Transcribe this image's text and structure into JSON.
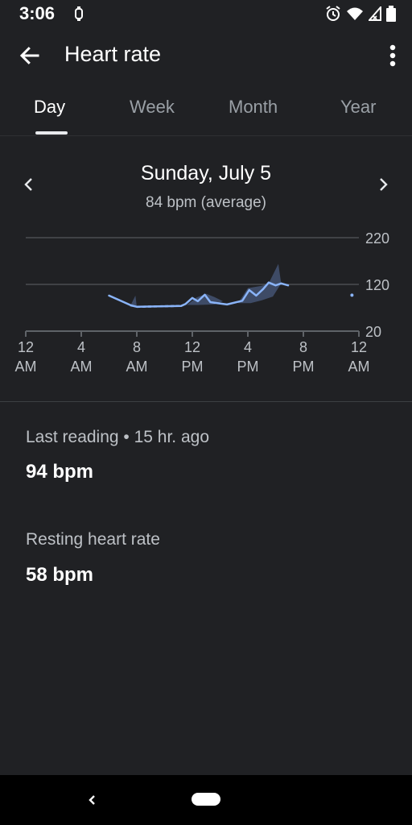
{
  "status": {
    "time": "3:06"
  },
  "header": {
    "title": "Heart rate"
  },
  "tabs": [
    {
      "label": "Day"
    },
    {
      "label": "Week"
    },
    {
      "label": "Month"
    },
    {
      "label": "Year"
    }
  ],
  "day": {
    "date": "Sunday, July 5",
    "average": "84 bpm (average)"
  },
  "chart_data": {
    "type": "line",
    "yticks": [
      "220",
      "120",
      "20"
    ],
    "ylim": [
      20,
      220
    ],
    "xticks": [
      {
        "top": "12",
        "bottom": "AM"
      },
      {
        "top": "4",
        "bottom": "AM"
      },
      {
        "top": "8",
        "bottom": "AM"
      },
      {
        "top": "12",
        "bottom": "PM"
      },
      {
        "top": "4",
        "bottom": "PM"
      },
      {
        "top": "8",
        "bottom": "PM"
      },
      {
        "top": "12",
        "bottom": "AM"
      }
    ],
    "x_hours": [
      0,
      24
    ],
    "series": [
      {
        "x": [
          6.0,
          7.6,
          8.0,
          11.2,
          11.5,
          12.0,
          12.4,
          12.9,
          13.3,
          13.8,
          14.5,
          15.6,
          16.1,
          16.6,
          17.1,
          17.5,
          18.0,
          18.4,
          18.9
        ],
        "y": [
          96,
          75,
          72,
          74,
          78,
          91,
          84,
          98,
          82,
          80,
          77,
          85,
          108,
          96,
          110,
          124,
          118,
          122,
          118
        ]
      },
      {
        "x": [
          23.5
        ],
        "y": [
          97
        ]
      }
    ],
    "gap": {
      "x": [
        8.0,
        11.2
      ],
      "y": [
        72,
        74
      ],
      "style": "dashed"
    },
    "accent": "#8ab4f8",
    "band_color": "#41506e",
    "grid_color": "#5f6368"
  },
  "last_reading": {
    "label": "Last reading • 15 hr. ago",
    "value": "94 bpm"
  },
  "resting": {
    "label": "Resting heart rate",
    "value": "58 bpm"
  }
}
